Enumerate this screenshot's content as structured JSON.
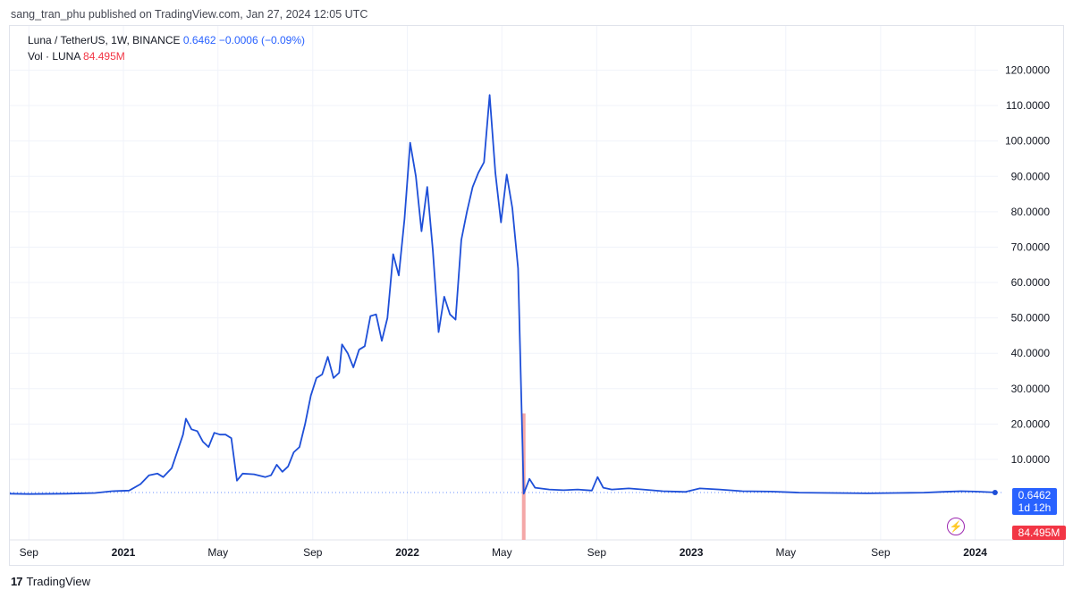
{
  "publisher_line": "sang_tran_phu published on TradingView.com, Jan 27, 2024 12:05 UTC",
  "legend": {
    "symbol": "Luna / TetherUS, 1W, BINANCE",
    "last": "0.6462",
    "change": "−0.0006 (−0.09%)",
    "vol_label": "Vol · LUNA",
    "vol_value": "84.495M"
  },
  "price_tag": {
    "price": "0.6462",
    "countdown": "1d 12h"
  },
  "vol_tag": "84.495M",
  "brand": {
    "logo": "17",
    "name": "TradingView"
  },
  "colors": {
    "line": "#1e4fd8",
    "volume": "#f23645",
    "volume_bar": "#f4a7a7",
    "accent": "#2962ff"
  },
  "icons": {
    "alert": "lightning-bolt-icon",
    "logo": "tradingview-logo-icon"
  },
  "chart_data": {
    "type": "line",
    "title": "Luna / TetherUS, 1W, BINANCE",
    "x_ticks": [
      {
        "t": 2020.667,
        "label": "Sep",
        "bold": false
      },
      {
        "t": 2021.0,
        "label": "2021",
        "bold": true
      },
      {
        "t": 2021.333,
        "label": "May",
        "bold": false
      },
      {
        "t": 2021.667,
        "label": "Sep",
        "bold": false
      },
      {
        "t": 2022.0,
        "label": "2022",
        "bold": true
      },
      {
        "t": 2022.333,
        "label": "May",
        "bold": false
      },
      {
        "t": 2022.667,
        "label": "Sep",
        "bold": false
      },
      {
        "t": 2023.0,
        "label": "2023",
        "bold": true
      },
      {
        "t": 2023.333,
        "label": "May",
        "bold": false
      },
      {
        "t": 2023.667,
        "label": "Sep",
        "bold": false
      },
      {
        "t": 2024.0,
        "label": "2024",
        "bold": true
      }
    ],
    "y_ticks": [
      "10.0000",
      "20.0000",
      "30.0000",
      "40.0000",
      "50.0000",
      "60.0000",
      "70.0000",
      "80.0000",
      "90.0000",
      "100.0000",
      "110.0000",
      "120.0000"
    ],
    "y_tick_values": [
      10,
      20,
      30,
      40,
      50,
      60,
      70,
      80,
      90,
      100,
      110,
      120
    ],
    "xlim": [
      2020.6,
      2024.08
    ],
    "ylim": [
      -12,
      130
    ],
    "grid": true,
    "series": [
      {
        "values": [
          [
            2020.6,
            0.3
          ],
          [
            2020.667,
            0.2
          ],
          [
            2020.8,
            0.3
          ],
          [
            2020.9,
            0.5
          ],
          [
            2020.96,
            1.0
          ],
          [
            2021.02,
            1.2
          ],
          [
            2021.06,
            3.0
          ],
          [
            2021.09,
            5.5
          ],
          [
            2021.12,
            6.0
          ],
          [
            2021.14,
            5.0
          ],
          [
            2021.17,
            7.5
          ],
          [
            2021.21,
            17.0
          ],
          [
            2021.22,
            21.5
          ],
          [
            2021.24,
            18.5
          ],
          [
            2021.26,
            18.0
          ],
          [
            2021.28,
            15.0
          ],
          [
            2021.3,
            13.5
          ],
          [
            2021.32,
            17.5
          ],
          [
            2021.34,
            17.0
          ],
          [
            2021.36,
            17.0
          ],
          [
            2021.38,
            16.0
          ],
          [
            2021.4,
            4.0
          ],
          [
            2021.42,
            6.0
          ],
          [
            2021.46,
            5.8
          ],
          [
            2021.5,
            5.0
          ],
          [
            2021.52,
            5.5
          ],
          [
            2021.54,
            8.5
          ],
          [
            2021.56,
            6.5
          ],
          [
            2021.58,
            8.0
          ],
          [
            2021.6,
            12.0
          ],
          [
            2021.62,
            13.5
          ],
          [
            2021.64,
            20.0
          ],
          [
            2021.66,
            28.0
          ],
          [
            2021.68,
            33.0
          ],
          [
            2021.7,
            34.0
          ],
          [
            2021.72,
            39.0
          ],
          [
            2021.74,
            33.0
          ],
          [
            2021.76,
            34.5
          ],
          [
            2021.77,
            42.5
          ],
          [
            2021.79,
            40.0
          ],
          [
            2021.81,
            36.0
          ],
          [
            2021.83,
            41.0
          ],
          [
            2021.85,
            42.0
          ],
          [
            2021.87,
            50.5
          ],
          [
            2021.89,
            51.0
          ],
          [
            2021.91,
            43.5
          ],
          [
            2021.93,
            50.0
          ],
          [
            2021.95,
            68.0
          ],
          [
            2021.97,
            62.0
          ],
          [
            2021.99,
            78.0
          ],
          [
            2022.01,
            99.5
          ],
          [
            2022.03,
            90.0
          ],
          [
            2022.05,
            74.5
          ],
          [
            2022.07,
            87.0
          ],
          [
            2022.09,
            69.0
          ],
          [
            2022.11,
            46.0
          ],
          [
            2022.13,
            56.0
          ],
          [
            2022.15,
            51.0
          ],
          [
            2022.17,
            49.5
          ],
          [
            2022.19,
            72.0
          ],
          [
            2022.21,
            80.0
          ],
          [
            2022.23,
            87.0
          ],
          [
            2022.25,
            91.0
          ],
          [
            2022.27,
            94.0
          ],
          [
            2022.29,
            113.0
          ],
          [
            2022.31,
            91.0
          ],
          [
            2022.33,
            77.0
          ],
          [
            2022.35,
            90.5
          ],
          [
            2022.37,
            81.0
          ],
          [
            2022.39,
            64.0
          ],
          [
            2022.41,
            0.3
          ],
          [
            2022.43,
            4.5
          ],
          [
            2022.45,
            2.0
          ],
          [
            2022.5,
            1.5
          ],
          [
            2022.55,
            1.3
          ],
          [
            2022.6,
            1.5
          ],
          [
            2022.65,
            1.2
          ],
          [
            2022.67,
            5.0
          ],
          [
            2022.69,
            2.0
          ],
          [
            2022.72,
            1.5
          ],
          [
            2022.78,
            1.8
          ],
          [
            2022.83,
            1.5
          ],
          [
            2022.9,
            1.0
          ],
          [
            2022.98,
            0.8
          ],
          [
            2023.03,
            1.8
          ],
          [
            2023.1,
            1.5
          ],
          [
            2023.18,
            1.0
          ],
          [
            2023.28,
            0.9
          ],
          [
            2023.38,
            0.6
          ],
          [
            2023.5,
            0.5
          ],
          [
            2023.62,
            0.4
          ],
          [
            2023.72,
            0.5
          ],
          [
            2023.82,
            0.6
          ],
          [
            2023.88,
            0.8
          ],
          [
            2023.95,
            1.0
          ],
          [
            2024.0,
            0.9
          ],
          [
            2024.07,
            0.6462
          ]
        ]
      }
    ],
    "volume_bars": [
      {
        "t": 2022.41,
        "value": 23.0
      }
    ]
  }
}
